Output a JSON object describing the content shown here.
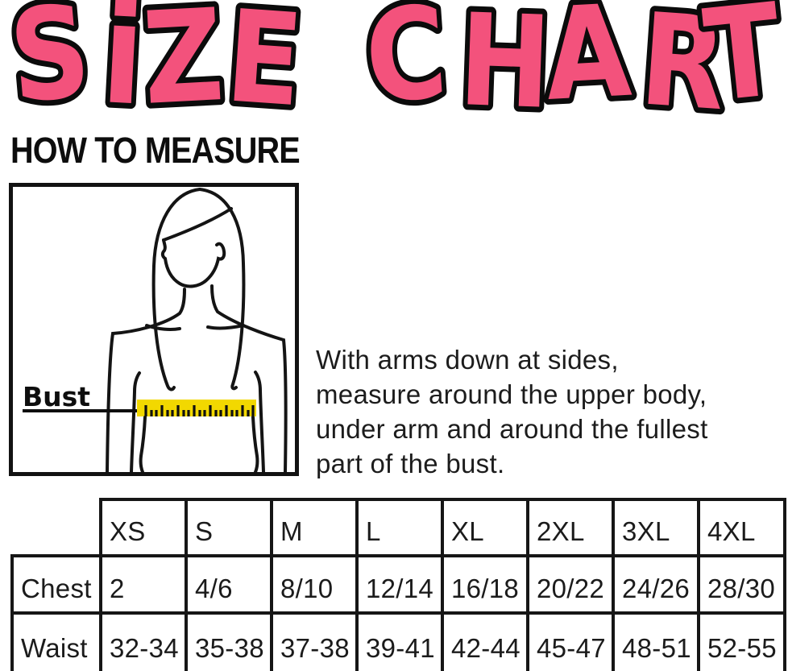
{
  "title": {
    "text": "SiZE CHART",
    "fill_color": "#F3527C",
    "outline_color": "#0b0b0b"
  },
  "how_to_measure": {
    "heading": "HOW TO MEASURE"
  },
  "diagram": {
    "bust_label": "Bust",
    "tape_color": "#F2D800"
  },
  "measure_instructions": {
    "lines": [
      "With arms down at sides,",
      "measure around the upper body,",
      "under arm and around the fullest",
      "part of the bust."
    ]
  },
  "size_table": {
    "columns": [
      "XS",
      "S",
      "M",
      "L",
      "XL",
      "2XL",
      "3XL",
      "4XL"
    ],
    "rows": [
      {
        "label": "Chest",
        "values": [
          "2",
          "4/6",
          "8/10",
          "12/14",
          "16/18",
          "20/22",
          "24/26",
          "28/30"
        ]
      },
      {
        "label": "Waist",
        "values": [
          "32-34",
          "35-38",
          "37-38",
          "39-41",
          "42-44",
          "45-47",
          "48-51",
          "52-55"
        ]
      }
    ]
  },
  "chart_data": {
    "type": "table",
    "title": "SiZE CHART",
    "columns": [
      "",
      "XS",
      "S",
      "M",
      "L",
      "XL",
      "2XL",
      "3XL",
      "4XL"
    ],
    "rows": [
      [
        "Chest",
        "2",
        "4/6",
        "8/10",
        "12/14",
        "16/18",
        "20/22",
        "24/26",
        "28/30"
      ],
      [
        "Waist",
        "32-34",
        "35-38",
        "37-38",
        "39-41",
        "42-44",
        "45-47",
        "48-51",
        "52-55"
      ]
    ]
  }
}
